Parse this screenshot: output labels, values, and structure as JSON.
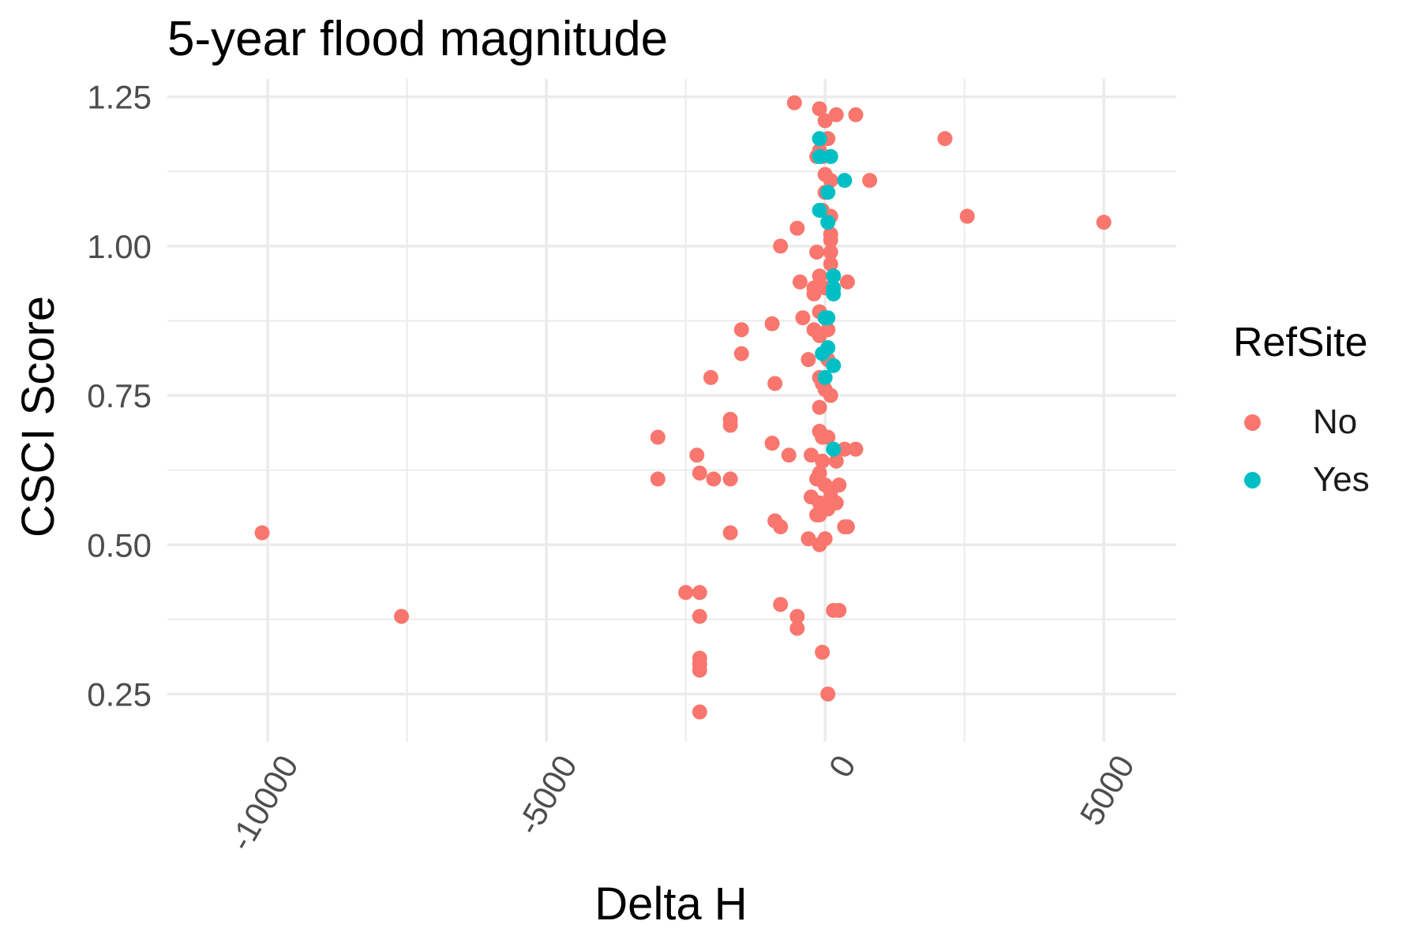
{
  "chart_data": {
    "type": "scatter",
    "title": "5-year flood magnitude",
    "xlabel": "Delta H",
    "ylabel": "CSCI Score",
    "xlim": [
      -11800,
      6300
    ],
    "ylim": [
      0.17,
      1.28
    ],
    "x_ticks": [
      -10000,
      -5000,
      0,
      5000
    ],
    "x_tick_labels": [
      "-10000",
      "-5000",
      "0",
      "5000"
    ],
    "y_ticks": [
      0.25,
      0.5,
      0.75,
      1.0,
      1.25
    ],
    "y_tick_labels": [
      "0.25",
      "0.50",
      "0.75",
      "1.00",
      "1.25"
    ],
    "grid": true,
    "legend": {
      "title": "RefSite",
      "placement": "right"
    },
    "series": [
      {
        "name": "No",
        "color": "#F8766D",
        "points": [
          [
            -10100,
            0.52
          ],
          [
            -7600,
            0.38
          ],
          [
            -3000,
            0.68
          ],
          [
            -3000,
            0.61
          ],
          [
            -2500,
            0.42
          ],
          [
            -2300,
            0.65
          ],
          [
            -2250,
            0.62
          ],
          [
            -2250,
            0.42
          ],
          [
            -2250,
            0.38
          ],
          [
            -2250,
            0.31
          ],
          [
            -2250,
            0.3
          ],
          [
            -2250,
            0.29
          ],
          [
            -2250,
            0.22
          ],
          [
            -2050,
            0.78
          ],
          [
            -2000,
            0.61
          ],
          [
            -1700,
            0.71
          ],
          [
            -1700,
            0.7
          ],
          [
            -1700,
            0.61
          ],
          [
            -1700,
            0.52
          ],
          [
            -1500,
            0.86
          ],
          [
            -1500,
            0.82
          ],
          [
            -950,
            0.87
          ],
          [
            -950,
            0.67
          ],
          [
            -900,
            0.77
          ],
          [
            -900,
            0.54
          ],
          [
            -800,
            1.0
          ],
          [
            -800,
            0.53
          ],
          [
            -800,
            0.4
          ],
          [
            -650,
            0.65
          ],
          [
            -550,
            1.24
          ],
          [
            -500,
            1.03
          ],
          [
            -500,
            0.38
          ],
          [
            -500,
            0.36
          ],
          [
            -450,
            0.94
          ],
          [
            -400,
            0.88
          ],
          [
            -300,
            0.81
          ],
          [
            -300,
            0.51
          ],
          [
            -250,
            0.65
          ],
          [
            -250,
            0.58
          ],
          [
            -200,
            0.86
          ],
          [
            -200,
            0.93
          ],
          [
            -200,
            0.92
          ],
          [
            -150,
            1.15
          ],
          [
            -150,
            0.99
          ],
          [
            -150,
            0.55
          ],
          [
            -150,
            0.61
          ],
          [
            -100,
            1.23
          ],
          [
            -100,
            1.16
          ],
          [
            -100,
            0.95
          ],
          [
            -100,
            0.89
          ],
          [
            -100,
            0.85
          ],
          [
            -100,
            0.78
          ],
          [
            -100,
            0.73
          ],
          [
            -100,
            0.69
          ],
          [
            -100,
            0.62
          ],
          [
            -100,
            0.57
          ],
          [
            -100,
            0.55
          ],
          [
            -100,
            0.5
          ],
          [
            -50,
            1.15
          ],
          [
            -50,
            1.06
          ],
          [
            -50,
            0.77
          ],
          [
            -50,
            0.68
          ],
          [
            -50,
            0.64
          ],
          [
            -50,
            0.32
          ],
          [
            0,
            1.21
          ],
          [
            0,
            1.12
          ],
          [
            0,
            1.09
          ],
          [
            0,
            0.93
          ],
          [
            0,
            0.82
          ],
          [
            0,
            0.76
          ],
          [
            0,
            0.6
          ],
          [
            0,
            0.51
          ],
          [
            50,
            1.18
          ],
          [
            50,
            0.86
          ],
          [
            50,
            0.81
          ],
          [
            50,
            0.68
          ],
          [
            50,
            0.56
          ],
          [
            50,
            0.25
          ],
          [
            100,
            1.11
          ],
          [
            100,
            1.05
          ],
          [
            100,
            1.02
          ],
          [
            100,
            1.01
          ],
          [
            100,
            0.99
          ],
          [
            100,
            0.97
          ],
          [
            100,
            0.75
          ],
          [
            100,
            0.59
          ],
          [
            100,
            0.58
          ],
          [
            150,
            0.39
          ],
          [
            200,
            1.22
          ],
          [
            200,
            0.64
          ],
          [
            200,
            0.57
          ],
          [
            250,
            0.6
          ],
          [
            250,
            0.39
          ],
          [
            350,
            0.66
          ],
          [
            350,
            0.53
          ],
          [
            400,
            0.94
          ],
          [
            400,
            0.53
          ],
          [
            550,
            0.66
          ],
          [
            550,
            1.22
          ],
          [
            800,
            1.11
          ],
          [
            2150,
            1.18
          ],
          [
            2550,
            1.05
          ],
          [
            5000,
            1.04
          ]
        ]
      },
      {
        "name": "Yes",
        "color": "#00BFC4",
        "points": [
          [
            -100,
            1.18
          ],
          [
            -100,
            1.15
          ],
          [
            -100,
            1.06
          ],
          [
            -50,
            0.82
          ],
          [
            0,
            0.88
          ],
          [
            0,
            0.78
          ],
          [
            50,
            1.09
          ],
          [
            50,
            1.04
          ],
          [
            50,
            0.88
          ],
          [
            50,
            0.83
          ],
          [
            100,
            1.15
          ],
          [
            150,
            0.95
          ],
          [
            150,
            0.93
          ],
          [
            150,
            0.92
          ],
          [
            150,
            0.8
          ],
          [
            150,
            0.66
          ],
          [
            350,
            1.11
          ]
        ]
      }
    ]
  }
}
